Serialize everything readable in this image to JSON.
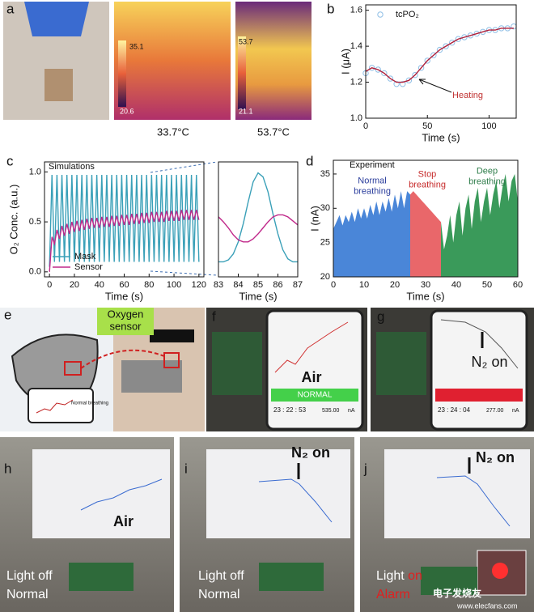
{
  "chart_data": [
    {
      "type": "scatter",
      "xlabel": "Time (s)",
      "ylabel": "I (μA)",
      "xlim": [
        0,
        122
      ],
      "ylim": [
        1.0,
        1.63
      ],
      "xticks": [
        0,
        50,
        100
      ],
      "yticks": [
        {
          "value": 1.0,
          "label": "1.0"
        },
        1.2,
        1.4,
        1.6
      ],
      "x": [
        0,
        5,
        10,
        15,
        20,
        25,
        30,
        35,
        40,
        45,
        50,
        55,
        60,
        65,
        70,
        75,
        80,
        85,
        90,
        95,
        100,
        105,
        110,
        115,
        120
      ],
      "series": [
        {
          "name": "tcPO₂",
          "kind": "scatter",
          "color": "#8fbfe6",
          "values": [
            1.25,
            1.28,
            1.27,
            1.25,
            1.22,
            1.19,
            1.19,
            1.21,
            1.24,
            1.28,
            1.32,
            1.35,
            1.38,
            1.4,
            1.42,
            1.44,
            1.45,
            1.46,
            1.47,
            1.48,
            1.49,
            1.49,
            1.5,
            1.5,
            1.51
          ]
        },
        {
          "kind": "line",
          "color": "#b0203a",
          "values": [
            1.26,
            1.28,
            1.27,
            1.25,
            1.22,
            1.2,
            1.2,
            1.21,
            1.24,
            1.28,
            1.32,
            1.35,
            1.38,
            1.4,
            1.42,
            1.44,
            1.45,
            1.46,
            1.47,
            1.48,
            1.49,
            1.49,
            1.5,
            1.5,
            1.5
          ]
        }
      ],
      "annotations": [
        "Heating"
      ],
      "legend": "upper left"
    },
    {
      "type": "line",
      "xlabel": "Time (s)",
      "ylabel": "O₂ Conc. (a.u.)",
      "xlim": [
        -4,
        124
      ],
      "ylim": [
        -0.05,
        1.1
      ],
      "xticks": [
        0,
        20,
        40,
        60,
        80,
        100,
        120
      ],
      "yticks": [
        {
          "value": 0,
          "label": "0.0"
        },
        0.5,
        {
          "value": 1,
          "label": "1.0"
        }
      ],
      "x": [
        0,
        2,
        4,
        6,
        8,
        10,
        12,
        14,
        16,
        18,
        20,
        22,
        24,
        26,
        28,
        30,
        32,
        34,
        36,
        38,
        40,
        42,
        44,
        46,
        48,
        50,
        52,
        54,
        56,
        58,
        60,
        62,
        64,
        66,
        68,
        70,
        72,
        74,
        76,
        78,
        80,
        82,
        84,
        86,
        88,
        90,
        92,
        94,
        96,
        98,
        100,
        102,
        104,
        106,
        108,
        110,
        112,
        114,
        116,
        118,
        120
      ],
      "series": [
        {
          "name": "Mask",
          "color": "#3aa0b8",
          "values": [
            0.05,
            0.97,
            0.1,
            0.97,
            0.1,
            0.97,
            0.1,
            0.97,
            0.1,
            0.97,
            0.1,
            0.97,
            0.1,
            0.97,
            0.1,
            0.97,
            0.1,
            0.97,
            0.1,
            0.97,
            0.1,
            0.97,
            0.1,
            0.97,
            0.1,
            0.97,
            0.1,
            0.97,
            0.1,
            0.97,
            0.1,
            0.97,
            0.1,
            0.97,
            0.1,
            0.97,
            0.1,
            0.97,
            0.1,
            0.97,
            0.1,
            0.97,
            0.1,
            0.97,
            0.1,
            0.97,
            0.1,
            0.97,
            0.1,
            0.97,
            0.1,
            0.97,
            0.1,
            0.97,
            0.1,
            0.97,
            0.1,
            0.97,
            0.1,
            0.97,
            0.1
          ]
        },
        {
          "name": "Sensor",
          "color": "#c0288a",
          "values": [
            0.0,
            0.35,
            0.28,
            0.42,
            0.33,
            0.46,
            0.36,
            0.48,
            0.38,
            0.5,
            0.4,
            0.51,
            0.41,
            0.52,
            0.42,
            0.53,
            0.43,
            0.54,
            0.44,
            0.54,
            0.44,
            0.55,
            0.45,
            0.55,
            0.45,
            0.56,
            0.46,
            0.56,
            0.46,
            0.57,
            0.47,
            0.57,
            0.47,
            0.58,
            0.48,
            0.58,
            0.48,
            0.59,
            0.49,
            0.59,
            0.49,
            0.6,
            0.5,
            0.6,
            0.5,
            0.6,
            0.5,
            0.61,
            0.51,
            0.61,
            0.51,
            0.61,
            0.51,
            0.62,
            0.52,
            0.62,
            0.52,
            0.62,
            0.52,
            0.62,
            0.52
          ]
        }
      ],
      "annotations": [
        "Simulations"
      ],
      "legend": "lower left"
    },
    {
      "type": "line",
      "xlabel": "Time (s)",
      "xlim": [
        83,
        87
      ],
      "ylim": [
        -0.05,
        1.1
      ],
      "xticks": [
        83,
        84,
        85,
        86,
        87
      ],
      "x": [
        83,
        83.25,
        83.5,
        83.75,
        84,
        84.25,
        84.5,
        84.75,
        85,
        85.25,
        85.5,
        85.75,
        86,
        86.25,
        86.5,
        86.75,
        87
      ],
      "series": [
        {
          "color": "#3aa0b8",
          "values": [
            0.1,
            0.1,
            0.12,
            0.18,
            0.3,
            0.48,
            0.7,
            0.9,
            0.99,
            0.95,
            0.8,
            0.58,
            0.38,
            0.22,
            0.13,
            0.1,
            0.1
          ]
        },
        {
          "color": "#c0288a",
          "values": [
            0.55,
            0.5,
            0.44,
            0.37,
            0.32,
            0.3,
            0.3,
            0.33,
            0.38,
            0.44,
            0.5,
            0.55,
            0.57,
            0.57,
            0.55,
            0.51,
            0.47
          ]
        }
      ]
    },
    {
      "type": "area",
      "xlabel": "Time (s)",
      "ylabel": "I (nA)",
      "xlim": [
        0,
        60
      ],
      "ylim": [
        20,
        37
      ],
      "xticks": [
        0,
        10,
        20,
        30,
        40,
        50,
        60
      ],
      "yticks": [
        20,
        25,
        30,
        35
      ],
      "series": [
        {
          "name": "Normal breathing",
          "color": "#4a86d8",
          "x": [
            0,
            1,
            2,
            3,
            4,
            5,
            6,
            7,
            8,
            9,
            10,
            11,
            12,
            13,
            14,
            15,
            16,
            17,
            18,
            19,
            20,
            21,
            22,
            23,
            24,
            25
          ],
          "values": [
            27,
            28,
            29,
            27.5,
            29,
            28,
            29.5,
            28,
            30,
            28.5,
            30,
            28.5,
            30.5,
            29,
            31,
            29,
            31,
            29.5,
            31.5,
            29.5,
            32,
            30,
            32.5,
            30,
            32.5,
            32
          ]
        },
        {
          "name": "Stop breathing",
          "color": "#e9676a",
          "x": [
            25,
            26,
            27,
            28,
            29,
            30,
            31,
            32,
            33,
            34,
            35
          ],
          "values": [
            32,
            32.5,
            32,
            31.5,
            31,
            30.5,
            30,
            29.5,
            29,
            28.5,
            28
          ]
        },
        {
          "name": "Deep breathing",
          "color": "#3a9a5a",
          "x": [
            35,
            36,
            37,
            38,
            39,
            40,
            41,
            42,
            43,
            44,
            45,
            46,
            47,
            48,
            49,
            50,
            51,
            52,
            53,
            54,
            55,
            56,
            57,
            58,
            59,
            60
          ],
          "values": [
            28,
            24,
            26,
            29,
            25,
            29,
            31,
            26,
            30,
            32,
            27,
            31,
            33,
            28,
            31,
            33,
            29,
            32,
            34,
            30,
            33,
            35,
            31,
            34,
            35,
            31
          ]
        }
      ],
      "annotations": [
        "Experiment"
      ]
    }
  ],
  "figure": {
    "panel_labels": [
      "a",
      "b",
      "c",
      "d",
      "e",
      "f",
      "g",
      "h",
      "i",
      "j"
    ],
    "a": {
      "temps": [
        "33.7°C",
        "53.7°C"
      ],
      "colorbar_1": [
        "35.1",
        "20.6"
      ],
      "colorbar_2": [
        "53.7",
        "21.1"
      ]
    },
    "e": {
      "sensor_label": "Oxygen sensor",
      "phone_label": "Normal breathing"
    },
    "f": {
      "label": "Air",
      "status": "NORMAL",
      "time": "23 : 22 : 53",
      "reading": "535.00",
      "unit": "nA"
    },
    "g": {
      "label": "N₂ on",
      "time": "23 : 24 : 04",
      "reading": "277.00",
      "unit": "nA"
    },
    "h": {
      "label": "Air",
      "light": "Light off",
      "state": "Normal"
    },
    "i": {
      "label": "N₂ on",
      "light": "Light off",
      "state": "Normal"
    },
    "j": {
      "label": "N₂ on",
      "light_1": "Light",
      "light_2": "on",
      "state": "Alarm"
    },
    "watermark": [
      "电子发烧友",
      "www.elecfans.com"
    ]
  }
}
